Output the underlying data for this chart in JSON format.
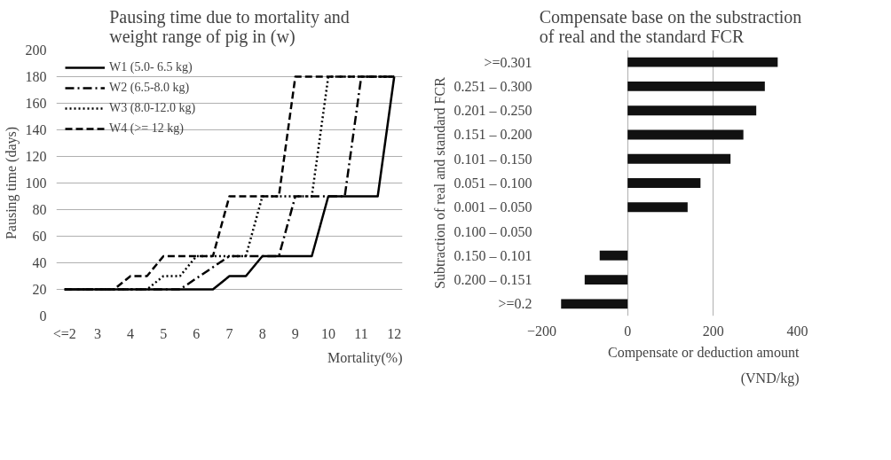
{
  "chart_data": [
    {
      "type": "line",
      "title": "Pausing time due to mortality and\nweight range of pig in (w)",
      "xlabel": "Mortality(%)",
      "ylabel": "Pausing time (days)",
      "xlim": [
        1.75,
        12.25
      ],
      "xticks": [
        {
          "value": 2,
          "label": "<=2"
        },
        3,
        4,
        5,
        6,
        7,
        8,
        9,
        10,
        11,
        12
      ],
      "ylim": [
        0,
        200
      ],
      "yticks": [
        0,
        20,
        40,
        60,
        80,
        100,
        120,
        140,
        160,
        180,
        200
      ],
      "grid": "y",
      "legend": "top left",
      "series": [
        {
          "name": "W1 (5.0- 6.5 kg)",
          "color": "#000000",
          "line_style": "solid",
          "x": [
            2,
            6.5,
            7,
            7.5,
            8,
            9.5,
            10,
            11.5,
            12
          ],
          "values": [
            20,
            20,
            30,
            30,
            45,
            45,
            90,
            90,
            180
          ]
        },
        {
          "name": "W2 (6.5-8.0 kg)",
          "color": "#000000",
          "line_style": "dashdot",
          "x": [
            2,
            5.5,
            7,
            8.5,
            9,
            10.5,
            11,
            12
          ],
          "values": [
            20,
            20,
            45,
            45,
            90,
            90,
            180,
            180
          ]
        },
        {
          "name": "W3 (8.0-12.0 kg)",
          "color": "#000000",
          "line_style": "dotted",
          "x": [
            2,
            4.5,
            5,
            5.5,
            6,
            7.5,
            8,
            9.5,
            10,
            12
          ],
          "values": [
            20,
            20,
            30,
            30,
            45,
            45,
            90,
            90,
            180,
            180
          ]
        },
        {
          "name": "W4 (>= 12 kg)",
          "color": "#000000",
          "line_style": "dashed",
          "x": [
            2,
            3.5,
            4,
            4.5,
            5,
            6.5,
            7,
            8.5,
            9,
            12
          ],
          "values": [
            20,
            20,
            30,
            30,
            45,
            45,
            90,
            90,
            180,
            180
          ]
        }
      ]
    },
    {
      "type": "bar",
      "orientation": "horizontal",
      "title": "Compensate base on the substraction\nof real and the standard FCR",
      "xlabel": "Compensate or deduction amount\n(VND/kg)",
      "ylabel": "Subtraction of real and standard FCR",
      "categories": [
        ">=0.301",
        "0.251 – 0.300",
        "0.201 – 0.250",
        "0.151 – 0.200",
        "0.101 – 0.150",
        "0.051 – 0.100",
        "0.001 – 0.050",
        "0.100 – 0.050",
        "0.150 – 0.101",
        "0.200 – 0.151",
        ">=0.2"
      ],
      "values": [
        350,
        320,
        300,
        270,
        240,
        170,
        140,
        null,
        -65,
        -100,
        -155
      ],
      "color": "#111111",
      "xlim": [
        -200,
        400
      ],
      "xticks": [
        -200,
        0,
        200,
        400
      ],
      "grid": "x"
    }
  ]
}
